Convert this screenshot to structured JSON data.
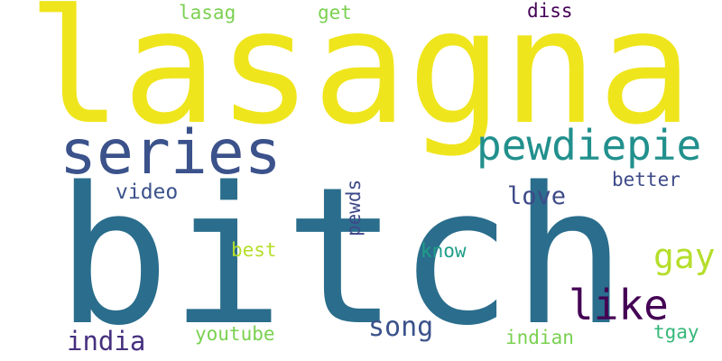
{
  "words": [
    {
      "text": "lasagna",
      "color": "#efe51c",
      "weight": 10
    },
    {
      "text": "bitch",
      "color": "#2a6d8c",
      "weight": 10
    },
    {
      "text": "series",
      "color": "#3b528b",
      "weight": 6
    },
    {
      "text": "pewdiepie",
      "color": "#21908d",
      "weight": 4
    },
    {
      "text": "like",
      "color": "#440154",
      "weight": 4
    },
    {
      "text": "gay",
      "color": "#b5de2b",
      "weight": 3
    },
    {
      "text": "india",
      "color": "#46307e",
      "weight": 3
    },
    {
      "text": "song",
      "color": "#3b528b",
      "weight": 3
    },
    {
      "text": "love",
      "color": "#3e4a89",
      "weight": 3
    },
    {
      "text": "video",
      "color": "#3b528b",
      "weight": 2
    },
    {
      "text": "pewds",
      "color": "#3e4a89",
      "weight": 2
    },
    {
      "text": "better",
      "color": "#3e4a89",
      "weight": 2
    },
    {
      "text": "lasag",
      "color": "#7ad151",
      "weight": 2
    },
    {
      "text": "get",
      "color": "#7ad151",
      "weight": 2
    },
    {
      "text": "diss",
      "color": "#440154",
      "weight": 2
    },
    {
      "text": "best",
      "color": "#b5de2b",
      "weight": 2
    },
    {
      "text": "know",
      "color": "#1f9e89",
      "weight": 2
    },
    {
      "text": "youtube",
      "color": "#7ad151",
      "weight": 2
    },
    {
      "text": "indian",
      "color": "#7ad151",
      "weight": 2
    },
    {
      "text": "tgay",
      "color": "#35b779",
      "weight": 2
    }
  ]
}
